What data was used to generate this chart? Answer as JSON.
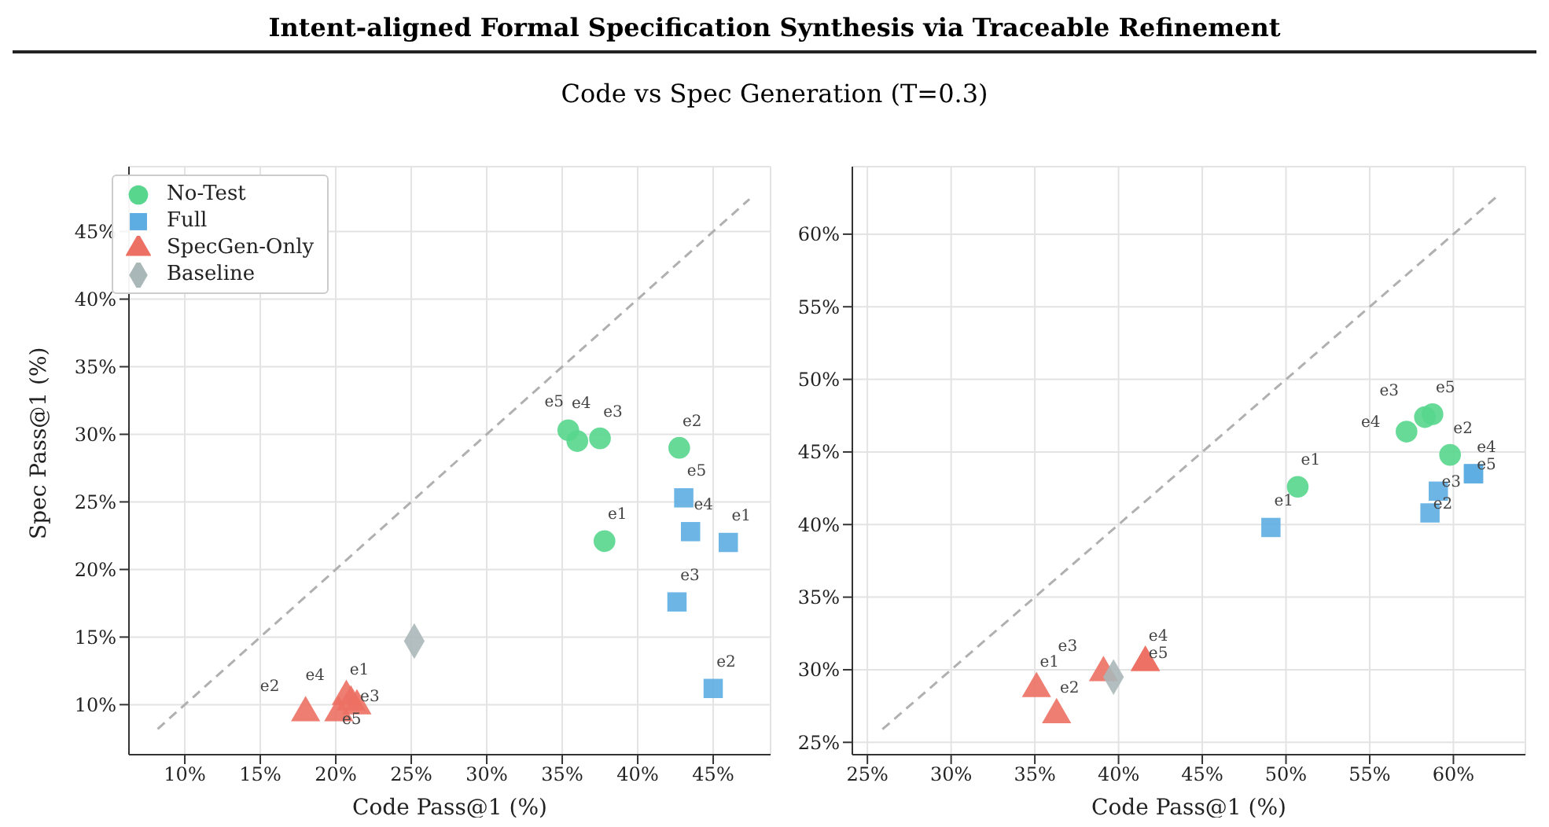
{
  "chart_data": [
    {
      "type": "scatter",
      "title": "Intent-aligned Formal Specification Synthesis via Traceable Refinement",
      "subtitle": "Code vs Spec Generation (T=0.3)",
      "xlabel": "Code Pass@1 (%)",
      "ylabel": "Spec Pass@1 (%)",
      "xlim": [
        6.3,
        48.8
      ],
      "ylim": [
        6.3,
        49.8
      ],
      "xticks": [
        {
          "value": 10,
          "label": "10%"
        },
        {
          "value": 15,
          "label": "15%"
        },
        {
          "value": 20,
          "label": "20%"
        },
        {
          "value": 25,
          "label": "25%"
        },
        {
          "value": 30,
          "label": "30%"
        },
        {
          "value": 35,
          "label": "35%"
        },
        {
          "value": 40,
          "label": "40%"
        },
        {
          "value": 45,
          "label": "45%"
        }
      ],
      "yticks": [
        {
          "value": 10,
          "label": "10%"
        },
        {
          "value": 15,
          "label": "15%"
        },
        {
          "value": 20,
          "label": "20%"
        },
        {
          "value": 25,
          "label": "25%"
        },
        {
          "value": 30,
          "label": "30%"
        },
        {
          "value": 35,
          "label": "35%"
        },
        {
          "value": 40,
          "label": "40%"
        },
        {
          "value": 45,
          "label": "45%"
        }
      ],
      "grid": true,
      "legend": "top left",
      "series": [
        {
          "type": "line",
          "color": "#b0b0b0",
          "line_style": "dashed",
          "marker": "none",
          "x": [
            8.2,
            47.4
          ],
          "values": [
            8.2,
            47.4
          ]
        },
        {
          "name": "No-Test",
          "color": "#58d68d",
          "marker": "circle",
          "x": [
            37.8,
            42.75,
            37.5,
            35.4,
            36.0
          ],
          "values": [
            22.1,
            29.0,
            29.7,
            30.3,
            29.5
          ],
          "value_labels": [
            "e1",
            "e2",
            "e3",
            "e4",
            "e5"
          ]
        },
        {
          "name": "Full",
          "color": "#5dade2",
          "marker": "square",
          "x": [
            46.0,
            45.0,
            42.6,
            43.5,
            43.05
          ],
          "values": [
            22.0,
            11.2,
            17.6,
            22.8,
            25.3
          ],
          "value_labels": [
            "e1",
            "e2",
            "e3",
            "e4",
            "e5"
          ]
        },
        {
          "name": "SpecGen-Only",
          "color": "#ec7063",
          "marker": "triangle",
          "x": [
            20.7,
            18.0,
            21.4,
            21.0,
            20.2
          ],
          "values": [
            10.6,
            9.4,
            9.9,
            10.2,
            9.4
          ],
          "value_labels": [
            "e1",
            "e2",
            "e3",
            "e4",
            "e5"
          ]
        },
        {
          "name": "Baseline",
          "color": "#aab7b8",
          "marker": "diamond",
          "x": [
            25.2
          ],
          "values": [
            14.7
          ]
        }
      ]
    },
    {
      "type": "scatter",
      "xlabel": "Code Pass@1 (%)",
      "xlim": [
        24.1,
        64.3
      ],
      "ylim": [
        24.15,
        64.65
      ],
      "xticks": [
        {
          "value": 25,
          "label": "25%"
        },
        {
          "value": 30,
          "label": "30%"
        },
        {
          "value": 35,
          "label": "35%"
        },
        {
          "value": 40,
          "label": "40%"
        },
        {
          "value": 45,
          "label": "45%"
        },
        {
          "value": 50,
          "label": "50%"
        },
        {
          "value": 55,
          "label": "55%"
        },
        {
          "value": 60,
          "label": "60%"
        }
      ],
      "yticks": [
        {
          "value": 25,
          "label": "25%"
        },
        {
          "value": 30,
          "label": "30%"
        },
        {
          "value": 35,
          "label": "35%"
        },
        {
          "value": 40,
          "label": "40%"
        },
        {
          "value": 45,
          "label": "45%"
        },
        {
          "value": 50,
          "label": "50%"
        },
        {
          "value": 55,
          "label": "55%"
        },
        {
          "value": 60,
          "label": "60%"
        }
      ],
      "grid": true,
      "series": [
        {
          "type": "line",
          "color": "#b0b0b0",
          "line_style": "dashed",
          "marker": "none",
          "x": [
            25.9,
            62.6
          ],
          "values": [
            25.9,
            62.6
          ]
        },
        {
          "color": "#58d68d",
          "marker": "circle",
          "x": [
            50.7,
            59.8,
            58.3,
            57.2,
            58.75
          ],
          "values": [
            42.6,
            44.8,
            47.4,
            46.4,
            47.6
          ],
          "value_labels": [
            "e1",
            "e2",
            "e3",
            "e4",
            "e5"
          ]
        },
        {
          "color": "#5dade2",
          "marker": "square",
          "x": [
            49.1,
            58.6,
            59.1,
            61.2,
            61.2
          ],
          "values": [
            39.8,
            40.8,
            42.3,
            43.5,
            43.5
          ],
          "value_labels": [
            "e1",
            "e2",
            "e3",
            "e4",
            "e5"
          ]
        },
        {
          "color": "#ec7063",
          "marker": "triangle",
          "x": [
            35.1,
            36.3,
            39.1,
            41.6,
            41.6
          ],
          "values": [
            28.7,
            26.9,
            29.8,
            30.5,
            30.5
          ],
          "value_labels": [
            "e1",
            "e2",
            "e3",
            "e4",
            "e5"
          ]
        },
        {
          "color": "#aab7b8",
          "marker": "diamond",
          "x": [
            39.7
          ],
          "values": [
            29.5
          ]
        }
      ]
    }
  ]
}
